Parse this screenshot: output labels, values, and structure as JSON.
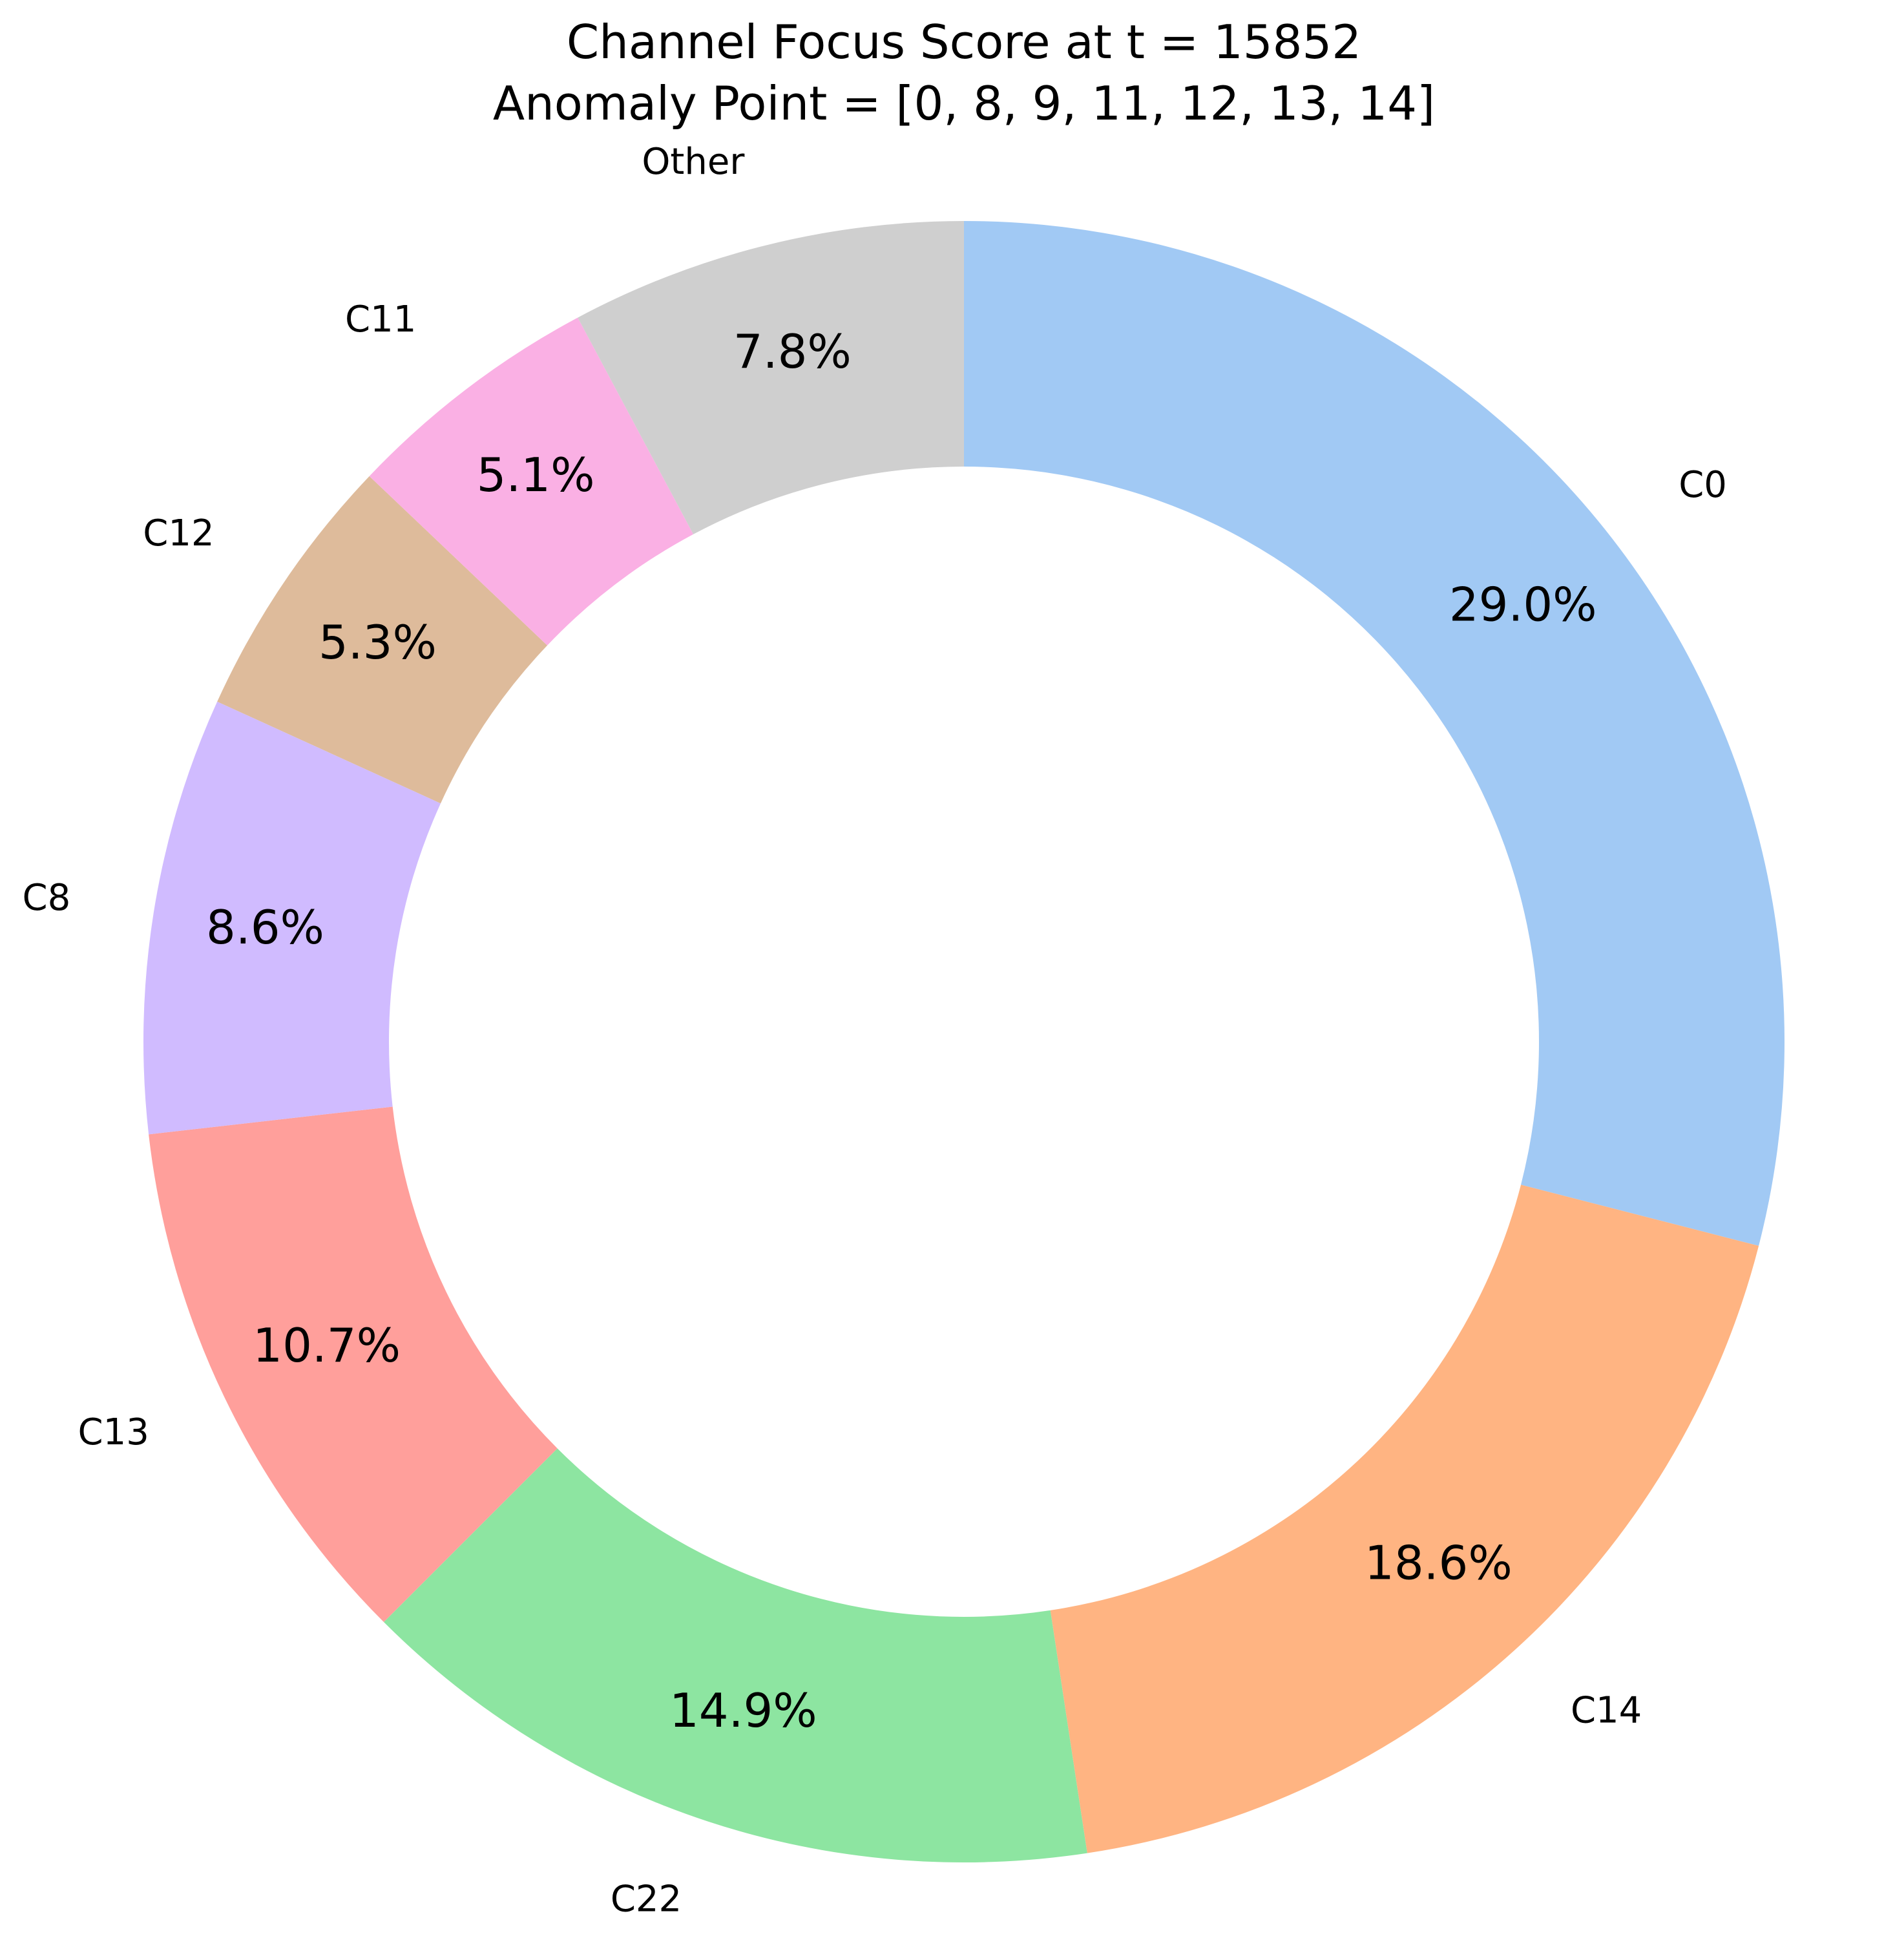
{
  "chart_data": {
    "type": "pie",
    "title": "Channel Focus Score at t = 15852",
    "subtitle": "Anomaly Point = [0, 8, 9, 11, 12, 13, 14]",
    "donut": true,
    "start_angle_deg": 90,
    "direction": "clockwise",
    "slices": [
      {
        "label": "C0",
        "value": 29.0,
        "pct_label": "29.0%",
        "color": "#a1c9f4"
      },
      {
        "label": "C14",
        "value": 18.6,
        "pct_label": "18.6%",
        "color": "#ffb482"
      },
      {
        "label": "C22",
        "value": 14.9,
        "pct_label": "14.9%",
        "color": "#8de5a1"
      },
      {
        "label": "C13",
        "value": 10.7,
        "pct_label": "10.7%",
        "color": "#ff9f9b"
      },
      {
        "label": "C8",
        "value": 8.6,
        "pct_label": "8.6%",
        "color": "#d0bbff"
      },
      {
        "label": "C12",
        "value": 5.3,
        "pct_label": "5.3%",
        "color": "#debb9b"
      },
      {
        "label": "C11",
        "value": 5.1,
        "pct_label": "5.1%",
        "color": "#fab0e4"
      },
      {
        "label": "Other",
        "value": 7.8,
        "pct_label": "7.8%",
        "color": "#cfcfcf"
      }
    ]
  }
}
